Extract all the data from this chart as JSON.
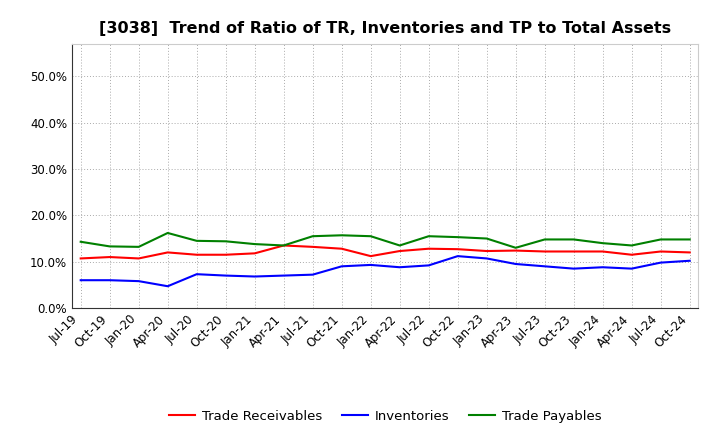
{
  "title": "[3038]  Trend of Ratio of TR, Inventories and TP to Total Assets",
  "x_labels": [
    "Jul-19",
    "Oct-19",
    "Jan-20",
    "Apr-20",
    "Jul-20",
    "Oct-20",
    "Jan-21",
    "Apr-21",
    "Jul-21",
    "Oct-21",
    "Jan-22",
    "Apr-22",
    "Jul-22",
    "Oct-22",
    "Jan-23",
    "Apr-23",
    "Jul-23",
    "Oct-23",
    "Jan-24",
    "Apr-24",
    "Jul-24",
    "Oct-24"
  ],
  "trade_receivables": [
    0.107,
    0.11,
    0.107,
    0.12,
    0.115,
    0.115,
    0.118,
    0.135,
    0.132,
    0.128,
    0.112,
    0.123,
    0.128,
    0.127,
    0.123,
    0.124,
    0.122,
    0.122,
    0.122,
    0.115,
    0.122,
    0.12
  ],
  "inventories": [
    0.06,
    0.06,
    0.058,
    0.047,
    0.073,
    0.07,
    0.068,
    0.07,
    0.072,
    0.09,
    0.093,
    0.088,
    0.092,
    0.112,
    0.107,
    0.095,
    0.09,
    0.085,
    0.088,
    0.085,
    0.098,
    0.102
  ],
  "trade_payables": [
    0.143,
    0.133,
    0.132,
    0.162,
    0.145,
    0.144,
    0.138,
    0.135,
    0.155,
    0.157,
    0.155,
    0.135,
    0.155,
    0.153,
    0.15,
    0.13,
    0.148,
    0.148,
    0.14,
    0.135,
    0.148,
    0.148
  ],
  "ylim": [
    0.0,
    0.57
  ],
  "yticks": [
    0.0,
    0.1,
    0.2,
    0.3,
    0.4,
    0.5
  ],
  "color_tr": "#ff0000",
  "color_inv": "#0000ff",
  "color_tp": "#008000",
  "legend_labels": [
    "Trade Receivables",
    "Inventories",
    "Trade Payables"
  ],
  "background_color": "#ffffff",
  "plot_bg_color": "#ffffff",
  "grid_color": "#aaaaaa",
  "title_fontsize": 11.5,
  "tick_fontsize": 8.5,
  "legend_fontsize": 9.5,
  "line_width": 1.5
}
